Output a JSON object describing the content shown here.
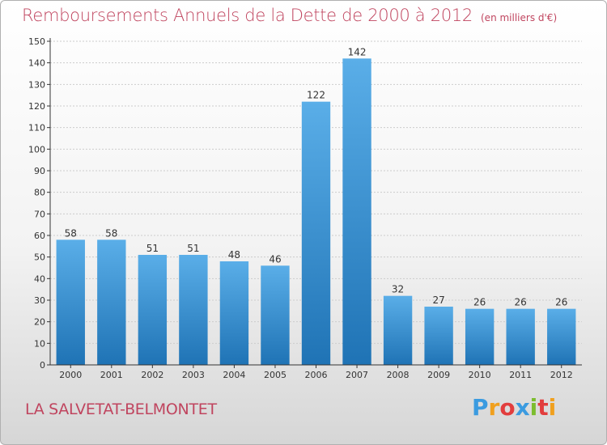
{
  "title": "Remboursements Annuels de la Dette de 2000 à 2012",
  "unit_note": "(en milliers d'€)",
  "location": "LA SALVETAT-BELMONTET",
  "logo": {
    "letters": [
      "P",
      "r",
      "o",
      "x",
      "i",
      "t",
      "i"
    ],
    "colors": [
      "#3b9be0",
      "#f0a01e",
      "#e23d3d",
      "#3b9be0",
      "#7cbd2e",
      "#e23d3d",
      "#f0a01e"
    ]
  },
  "colors": {
    "bar_light": "#5aaee8",
    "bar_dark": "#1f73b5",
    "accent": "#c0455f",
    "grid": "#cccccc"
  },
  "chart_data": {
    "type": "bar",
    "categories": [
      "2000",
      "2001",
      "2002",
      "2003",
      "2004",
      "2005",
      "2006",
      "2007",
      "2008",
      "2009",
      "2010",
      "2011",
      "2012"
    ],
    "values": [
      58,
      58,
      51,
      51,
      48,
      46,
      122,
      142,
      32,
      27,
      26,
      26,
      26
    ],
    "ylim": [
      0,
      150
    ],
    "yticks": [
      0,
      10,
      20,
      30,
      40,
      50,
      60,
      70,
      80,
      90,
      100,
      110,
      120,
      130,
      140,
      150
    ],
    "grid": true,
    "legend": "none"
  }
}
